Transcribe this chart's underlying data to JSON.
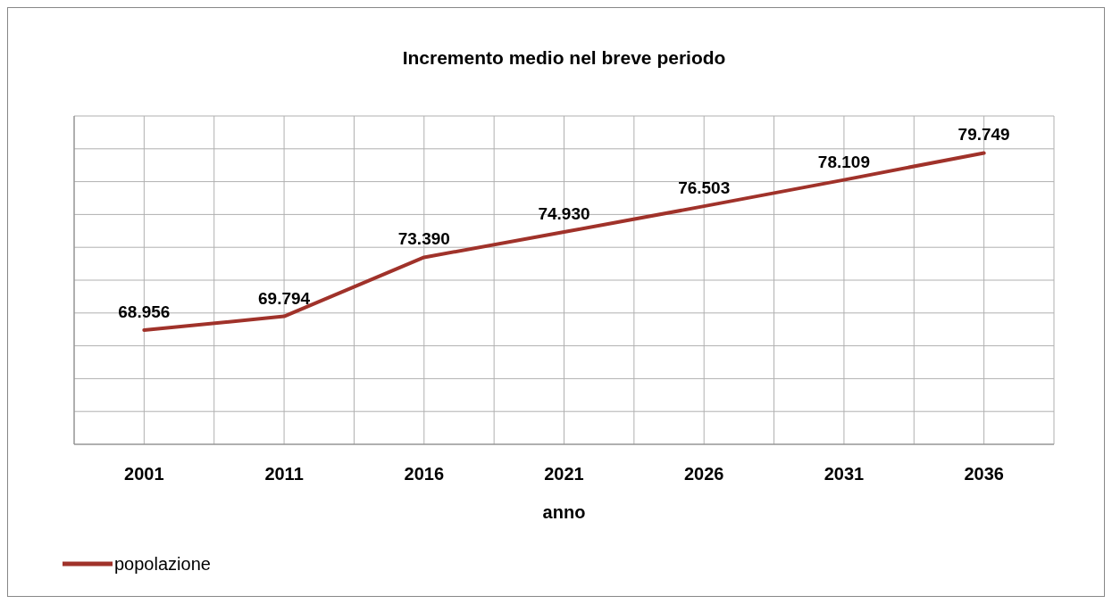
{
  "chart_data": {
    "type": "line",
    "title": "Incremento medio nel breve periodo",
    "xlabel": "anno",
    "categories": [
      "2001",
      "2011",
      "2016",
      "2021",
      "2026",
      "2031",
      "2036"
    ],
    "series": [
      {
        "name": "popolazione",
        "color": "#a0322a",
        "values": [
          68956,
          69794,
          73390,
          74930,
          76503,
          78109,
          79749
        ],
        "value_labels": [
          "68.956",
          "69.794",
          "73.390",
          "74.930",
          "76.503",
          "78.109",
          "79.749"
        ]
      }
    ],
    "ylim": [
      62000,
      82000
    ],
    "yticks": [
      {
        "value": 62000,
        "label": null
      },
      {
        "value": 64000,
        "label": null
      },
      {
        "value": 66000,
        "label": null
      },
      {
        "value": 68000,
        "label": null
      },
      {
        "value": 70000,
        "label": null
      },
      {
        "value": 72000,
        "label": null
      },
      {
        "value": 74000,
        "label": null
      },
      {
        "value": 76000,
        "label": null
      },
      {
        "value": 78000,
        "label": null
      },
      {
        "value": 80000,
        "label": null
      },
      {
        "value": 82000,
        "label": null
      }
    ],
    "tick_labels": "x",
    "grid": true,
    "legend": "bottom left",
    "marker": "none",
    "line_style": "solid"
  }
}
